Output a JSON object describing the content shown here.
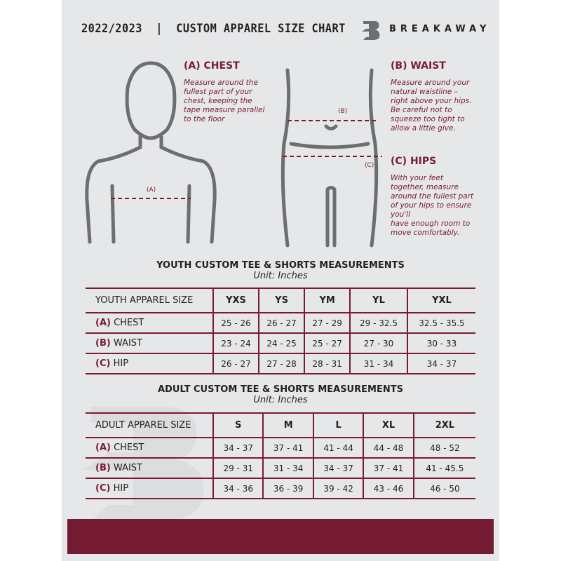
{
  "header": {
    "title": "2022/2023  |  CUSTOM APPAREL SIZE CHART",
    "brand": "BREAKAWAY",
    "logo_letter": "B"
  },
  "measures": {
    "chest": {
      "title": "(A) CHEST",
      "marker": "(A)",
      "desc": [
        "Measure around the",
        "fullest part of your",
        "chest, keeping the",
        "tape measure parallel",
        "to the floor"
      ]
    },
    "waist": {
      "title": "(B) WAIST",
      "marker": "(B)",
      "desc": [
        "Measure around your",
        "natural waistline –",
        "right above your hips.",
        "Be careful not to",
        "squeeze too tight to",
        "allow a little give."
      ]
    },
    "hips": {
      "title": "(C) HIPS",
      "marker": "(C)",
      "desc": [
        "With your feet",
        "together, measure",
        "around the fullest part",
        "of your hips to ensure",
        "you'll",
        "have enough room to",
        "move comfortably."
      ]
    }
  },
  "youth": {
    "heading": "YOUTH CUSTOM TEE & SHORTS MEASUREMENTS",
    "unit": "Unit: Inches",
    "size_label": "YOUTH APPAREL SIZE",
    "sizes": [
      "YXS",
      "YS",
      "YM",
      "YL",
      "YXL"
    ],
    "rows": [
      {
        "letter": "(A)",
        "name": "CHEST",
        "values": [
          "25 - 26",
          "26 - 27",
          "27 - 29",
          "29 - 32.5",
          "32.5 - 35.5"
        ]
      },
      {
        "letter": "(B)",
        "name": "WAIST",
        "values": [
          "23 - 24",
          "24 - 25",
          "25 - 27",
          "27 - 30",
          "30 - 33"
        ]
      },
      {
        "letter": "(C)",
        "name": "HIP",
        "values": [
          "26 - 27",
          "27 - 28",
          "28 - 31",
          "31 - 34",
          "34 - 37"
        ]
      }
    ]
  },
  "adult": {
    "heading": "ADULT CUSTOM TEE & SHORTS MEASUREMENTS",
    "unit": "Unit: Inches",
    "size_label": "ADULT APPAREL SIZE",
    "sizes": [
      "S",
      "M",
      "L",
      "XL",
      "2XL"
    ],
    "rows": [
      {
        "letter": "(A)",
        "name": "CHEST",
        "values": [
          "34 - 37",
          "37 - 41",
          "41 - 44",
          "44 - 48",
          "48 - 52"
        ]
      },
      {
        "letter": "(B)",
        "name": "WAIST",
        "values": [
          "29 - 31",
          "31 - 34",
          "34 - 37",
          "37 - 41",
          "41 - 45.5"
        ]
      },
      {
        "letter": "(C)",
        "name": "HIP",
        "values": [
          "34 - 36",
          "36 - 39",
          "39 - 42",
          "43 - 46",
          "46 - 50"
        ]
      }
    ]
  },
  "colors": {
    "accent": "#7a1a33",
    "panel": "#e6e7e8",
    "footer": "#741b33"
  }
}
